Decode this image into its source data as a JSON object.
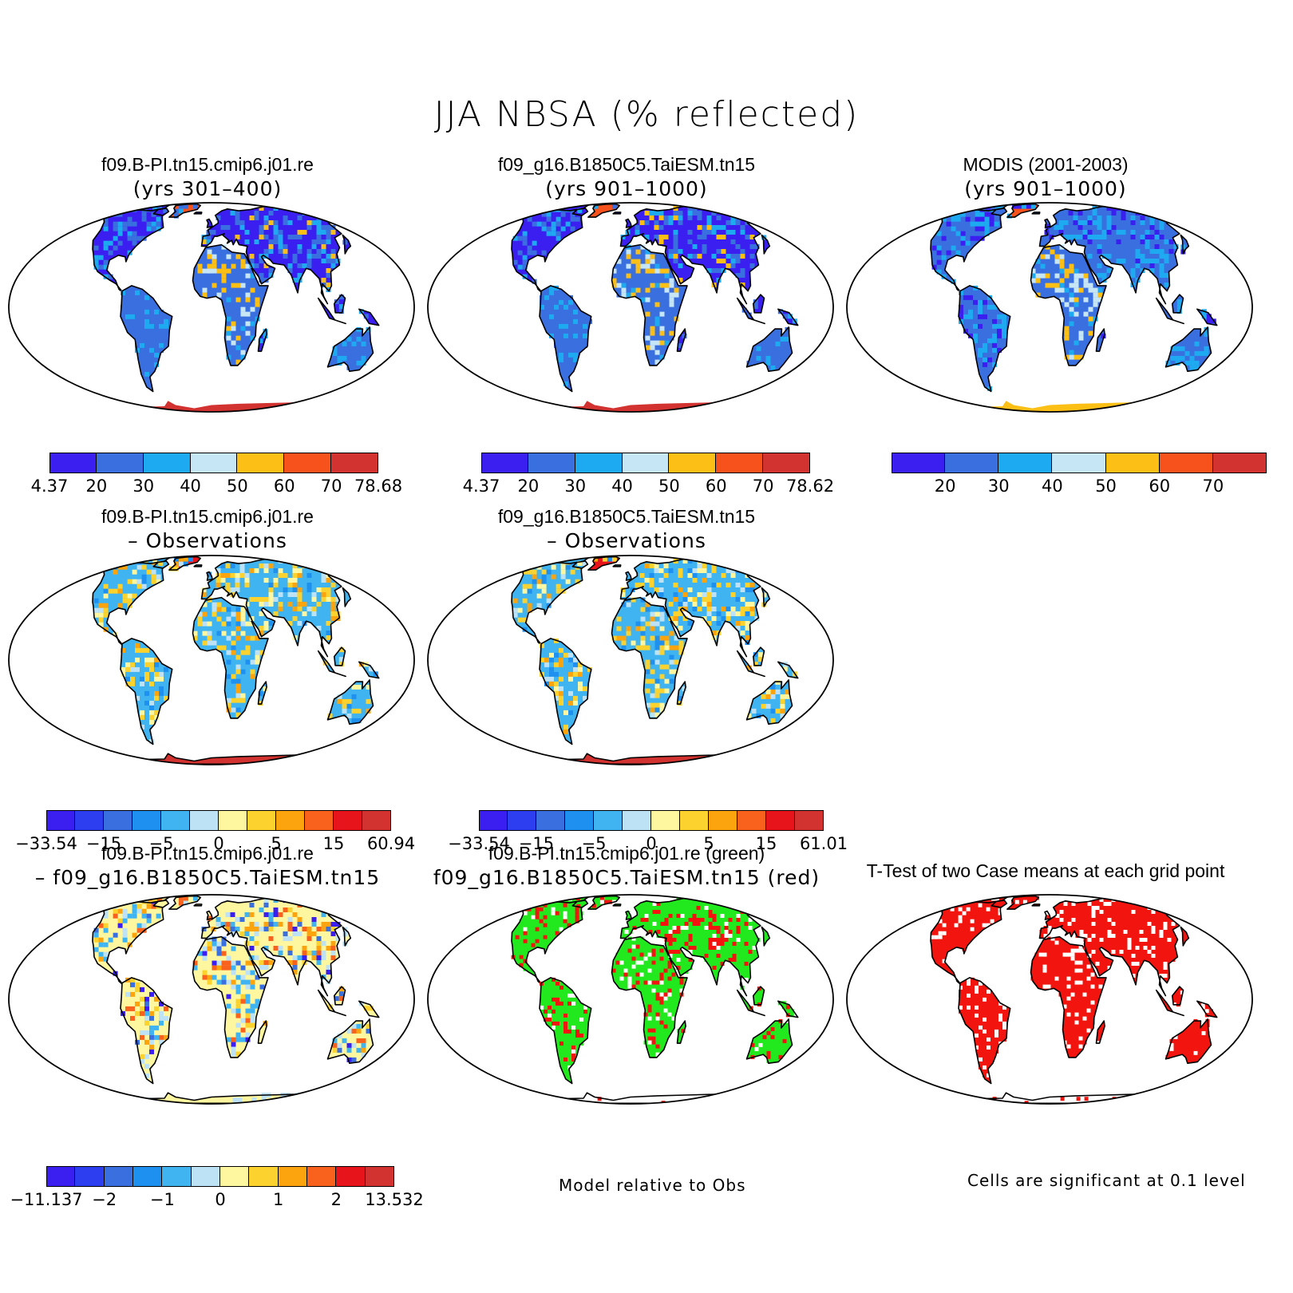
{
  "figure": {
    "title": "JJA NBSA (% reflected)"
  },
  "panels": [
    {
      "id": "p1",
      "title": "f09.B-PI.tn15.cmip6.j01.re",
      "subtitle": "(yrs 301–400)",
      "style": "model_a"
    },
    {
      "id": "p2",
      "title": "f09_g16.B1850C5.TaiESM.tn15",
      "subtitle": "(yrs 901–1000)",
      "style": "model_b"
    },
    {
      "id": "p3",
      "title": "MODIS (2001-2003)",
      "subtitle": "(yrs 901–1000)",
      "style": "obs"
    },
    {
      "id": "p4",
      "title": "f09.B-PI.tn15.cmip6.j01.re",
      "subtitle": "– Observations",
      "style": "bias_a"
    },
    {
      "id": "p5",
      "title": "f09_g16.B1850C5.TaiESM.tn15",
      "subtitle": "– Observations",
      "style": "bias_b"
    },
    {
      "id": "p7",
      "title": "f09.B-PI.tn15.cmip6.j01.re",
      "subtitle": "– f09_g16.B1850C5.TaiESM.tn15",
      "style": "diff"
    },
    {
      "id": "p8",
      "title": "f09.B-PI.tn15.cmip6.j01.re (green)",
      "subtitle": "f09_g16.B1850C5.TaiESM.tn15 (red)",
      "style": "compare"
    },
    {
      "id": "p9",
      "title": "T-Test of two Case means at each grid point",
      "subtitle": "",
      "style": "ttest"
    }
  ],
  "colorbars": [
    {
      "id": "cb1",
      "colors": [
        "#3a1ff0",
        "#3a6fe0",
        "#1eaaf0",
        "#c6e6f6",
        "#fbbf16",
        "#f8521c",
        "#d23230"
      ],
      "labels": [
        "4.37",
        "20",
        "30",
        "40",
        "50",
        "60",
        "70",
        "78.68"
      ]
    },
    {
      "id": "cb2",
      "colors": [
        "#3a1ff0",
        "#3a6fe0",
        "#1eaaf0",
        "#c6e6f6",
        "#fbbf16",
        "#f8521c",
        "#d23230"
      ],
      "labels": [
        "4.37",
        "20",
        "30",
        "40",
        "50",
        "60",
        "70",
        "78.62"
      ]
    },
    {
      "id": "cb3",
      "colors": [
        "#3a1ff0",
        "#3a6fe0",
        "#1eaaf0",
        "#c6e6f6",
        "#fbbf16",
        "#f8521c",
        "#d23230"
      ],
      "labels": [
        "20",
        "30",
        "40",
        "50",
        "60",
        "70"
      ]
    },
    {
      "id": "cb4",
      "colors": [
        "#3a1ff0",
        "#2c3ef0",
        "#3a6fe0",
        "#1e90f0",
        "#40b4f0",
        "#bde2f6",
        "#fff6a0",
        "#fbd22e",
        "#fba40e",
        "#f8621c",
        "#e8141c",
        "#d23230"
      ],
      "labels": [
        "−33.54",
        "−15",
        "−5",
        "0",
        "5",
        "15",
        "60.94"
      ]
    },
    {
      "id": "cb5",
      "colors": [
        "#3a1ff0",
        "#2c3ef0",
        "#3a6fe0",
        "#1e90f0",
        "#40b4f0",
        "#bde2f6",
        "#fff6a0",
        "#fbd22e",
        "#fba40e",
        "#f8621c",
        "#e8141c",
        "#d23230"
      ],
      "labels": [
        "−33.54",
        "−15",
        "−5",
        "0",
        "5",
        "15",
        "61.01"
      ]
    },
    {
      "id": "cb7",
      "colors": [
        "#3a1ff0",
        "#2c3ef0",
        "#3a6fe0",
        "#1e90f0",
        "#40b4f0",
        "#bde2f6",
        "#fff6a0",
        "#fbd22e",
        "#fba40e",
        "#f8621c",
        "#e8141c",
        "#d23230"
      ],
      "labels": [
        "−11.137",
        "−2",
        "−1",
        "0",
        "1",
        "2",
        "13.532"
      ]
    }
  ],
  "notes": {
    "compare_note": "Model relative to Obs",
    "ttest_note": "Cells are significant at 0.1 level"
  }
}
